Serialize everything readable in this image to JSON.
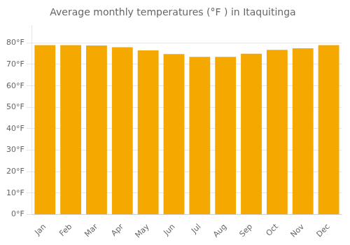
{
  "chart_data": {
    "type": "bar",
    "title": "Average monthly temperatures (°F ) in Itaquitinga",
    "categories": [
      "Jan",
      "Feb",
      "Mar",
      "Apr",
      "May",
      "Jun",
      "Jul",
      "Aug",
      "Sep",
      "Oct",
      "Nov",
      "Dec"
    ],
    "values": [
      79.0,
      79.0,
      78.8,
      78.0,
      76.5,
      74.8,
      73.5,
      73.5,
      75.0,
      76.8,
      77.5,
      79.0
    ],
    "color": "#F5A800",
    "ylim": [
      0,
      88
    ],
    "yticks": [
      {
        "value": 0,
        "label": "0°F"
      },
      {
        "value": 10,
        "label": "10°F"
      },
      {
        "value": 20,
        "label": "20°F"
      },
      {
        "value": 30,
        "label": "30°F"
      },
      {
        "value": 40,
        "label": "40°F"
      },
      {
        "value": 50,
        "label": "50°F"
      },
      {
        "value": 60,
        "label": "60°F"
      },
      {
        "value": 70,
        "label": "70°F"
      },
      {
        "value": 80,
        "label": "80°F"
      }
    ],
    "grid": true
  }
}
